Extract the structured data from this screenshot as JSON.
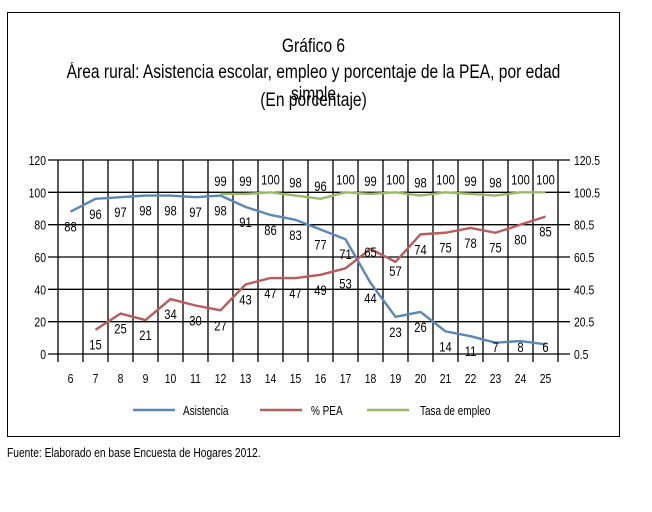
{
  "title_lines": [
    "Gráfico 6",
    "Área rural: Asistencia escolar, empleo y porcentaje de la PEA, por edad simple",
    "(En porcentaje)"
  ],
  "source": "Fuente: Elaborado en base Encuesta de Hogares 2012.",
  "chart_data": {
    "type": "line",
    "title": "Área rural: Asistencia escolar, empleo y porcentaje de la PEA, por edad simple (En porcentaje)",
    "xlabel": "",
    "ylabel": "",
    "x": [
      6,
      7,
      8,
      9,
      10,
      11,
      12,
      13,
      14,
      15,
      16,
      17,
      18,
      19,
      20,
      21,
      22,
      23,
      24,
      25
    ],
    "ylim": [
      0,
      120
    ],
    "yticks": [
      0,
      20,
      40,
      60,
      80,
      100,
      120
    ],
    "y2lim": [
      0.5,
      120.5
    ],
    "y2ticks": [
      "0.5",
      "20.5",
      "40.5",
      "60.5",
      "80.5",
      "100.5",
      "120.5"
    ],
    "grid": true,
    "legend_position": "bottom",
    "series": [
      {
        "name": "Asistencia",
        "color": "#5b87b7",
        "values": [
          88,
          96,
          97,
          98,
          98,
          97,
          98,
          91,
          86,
          83,
          77,
          71,
          44,
          23,
          26,
          14,
          11,
          7,
          8,
          6
        ]
      },
      {
        "name": "% PEA",
        "color": "#b85c5c",
        "values": [
          null,
          15,
          25,
          21,
          34,
          30,
          27,
          43,
          47,
          47,
          49,
          53,
          65,
          57,
          74,
          75,
          78,
          75,
          80,
          85
        ]
      },
      {
        "name": "Tasa de empleo",
        "color": "#9bb86a",
        "values": [
          null,
          null,
          null,
          null,
          null,
          null,
          99,
          99,
          100,
          98,
          96,
          100,
          99,
          100,
          98,
          100,
          99,
          98,
          100,
          100
        ]
      }
    ]
  }
}
